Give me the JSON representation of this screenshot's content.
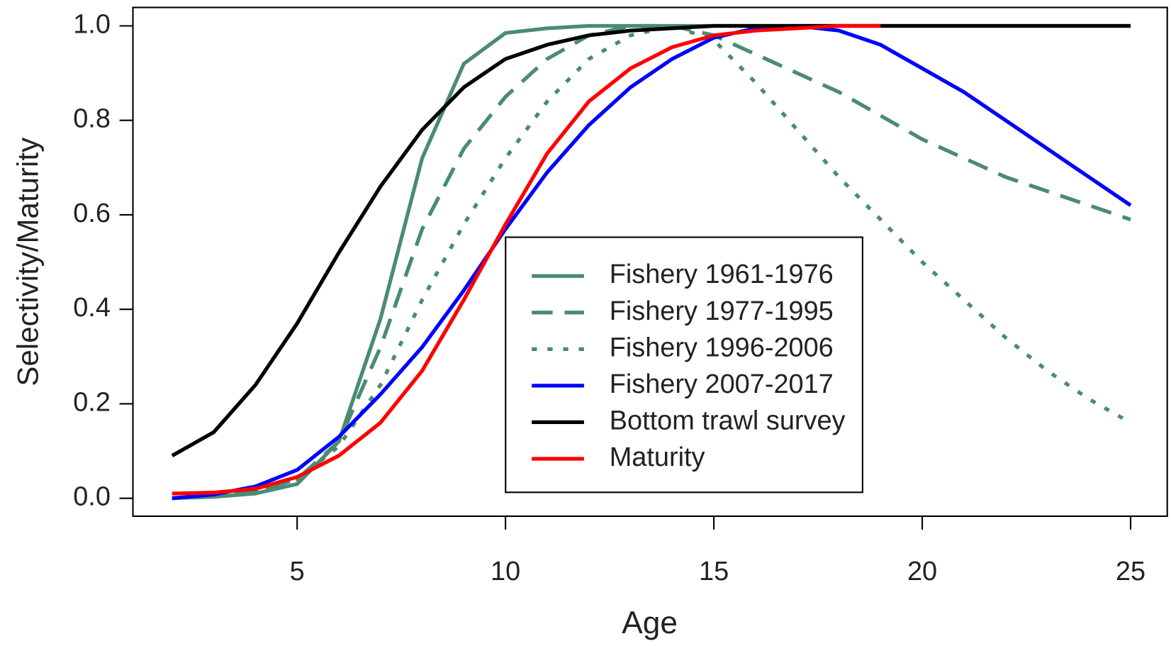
{
  "chart_data": {
    "type": "line",
    "x_label": "Age",
    "y_label": "Selectivity/Maturity",
    "x": [
      2,
      3,
      4,
      5,
      6,
      7,
      8,
      9,
      10,
      11,
      12,
      13,
      14,
      15,
      16,
      17,
      18,
      19,
      20,
      21,
      22,
      23,
      24,
      25
    ],
    "series": [
      {
        "name": "Fishery 1961-1976",
        "color": "#4a8b73",
        "style": "solid",
        "values": [
          0,
          0.003,
          0.01,
          0.03,
          0.12,
          0.38,
          0.72,
          0.92,
          0.985,
          0.995,
          1,
          1,
          1,
          1,
          1,
          1,
          1,
          1,
          1,
          1,
          1,
          1,
          1,
          1
        ]
      },
      {
        "name": "Fishery 1977-1995",
        "color": "#4a8b73",
        "style": "dashed",
        "values": [
          0,
          0.005,
          0.015,
          0.04,
          0.12,
          0.32,
          0.57,
          0.74,
          0.85,
          0.93,
          0.98,
          1,
          1,
          0.98,
          0.94,
          0.9,
          0.86,
          0.81,
          0.76,
          0.72,
          0.68,
          0.65,
          0.62,
          0.59
        ]
      },
      {
        "name": "Fishery 1996-2006",
        "color": "#4a8b73",
        "style": "dotted",
        "values": [
          0,
          0.005,
          0.015,
          0.04,
          0.11,
          0.24,
          0.42,
          0.58,
          0.72,
          0.84,
          0.93,
          0.98,
          1,
          0.97,
          0.88,
          0.78,
          0.68,
          0.59,
          0.5,
          0.42,
          0.34,
          0.27,
          0.21,
          0.16
        ]
      },
      {
        "name": "Fishery 2007-2017",
        "color": "#0000ff",
        "style": "solid",
        "values": [
          0,
          0.008,
          0.025,
          0.06,
          0.13,
          0.22,
          0.32,
          0.44,
          0.57,
          0.69,
          0.79,
          0.87,
          0.93,
          0.975,
          0.995,
          1,
          0.99,
          0.96,
          0.91,
          0.86,
          0.8,
          0.74,
          0.68,
          0.62
        ]
      },
      {
        "name": "Bottom trawl survey",
        "color": "#000000",
        "style": "solid",
        "values": [
          0.09,
          0.14,
          0.24,
          0.37,
          0.52,
          0.66,
          0.78,
          0.87,
          0.93,
          0.96,
          0.98,
          0.99,
          0.995,
          1,
          1,
          1,
          1,
          1,
          1,
          1,
          1,
          1,
          1,
          1
        ]
      },
      {
        "name": "Maturity",
        "color": "#ff0000",
        "style": "solid",
        "values": [
          0.01,
          0.012,
          0.02,
          0.045,
          0.09,
          0.16,
          0.27,
          0.42,
          0.58,
          0.73,
          0.84,
          0.91,
          0.955,
          0.98,
          0.99,
          0.995,
          1,
          1,
          null,
          null,
          null,
          null,
          null,
          null
        ]
      }
    ],
    "xlim": [
      1.06,
      25.88
    ],
    "xticks": [
      5,
      10,
      15,
      20,
      25
    ],
    "ylim": [
      -0.038,
      1.039
    ],
    "yticks": [
      {
        "value": 0,
        "label": "0.0"
      },
      0.2,
      0.4,
      0.6,
      0.8,
      {
        "value": 1,
        "label": "1.0"
      }
    ],
    "legend": "center"
  }
}
